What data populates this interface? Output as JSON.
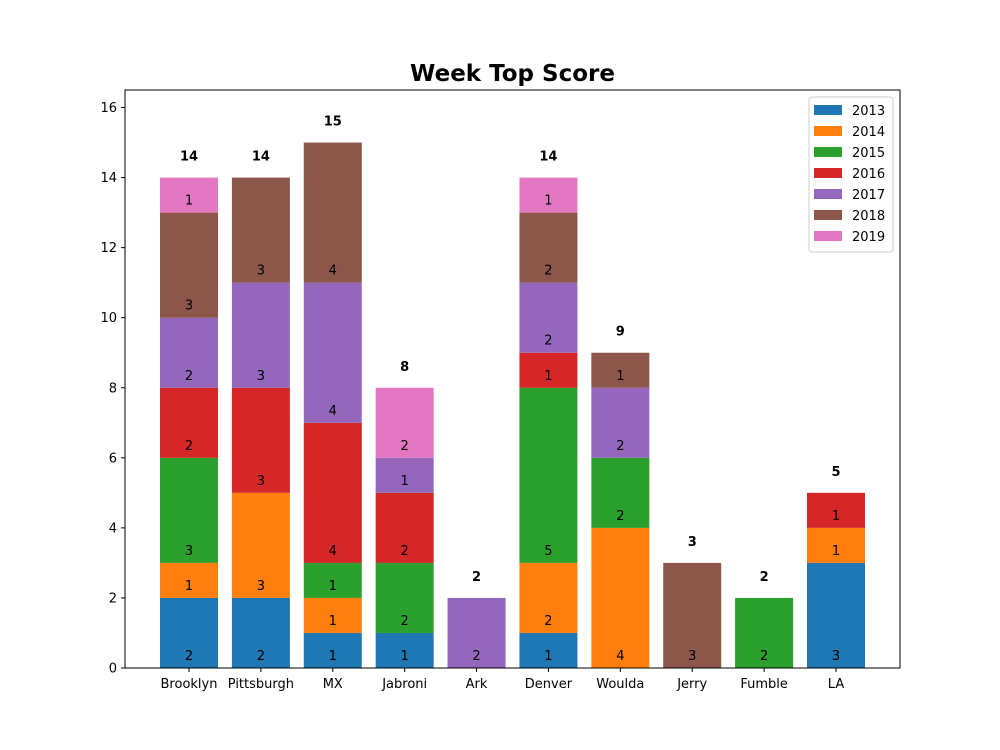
{
  "chart_data": {
    "type": "bar",
    "stacked": true,
    "title": "Week Top Score",
    "xlabel": "",
    "ylabel": "",
    "ylim": [
      0,
      16.5
    ],
    "yticks": [
      0,
      2,
      4,
      6,
      8,
      10,
      12,
      14,
      16
    ],
    "grid": false,
    "legend_position": "top-right",
    "categories": [
      "Brooklyn",
      "Pittsburgh",
      "MX",
      "Jabroni",
      "Ark",
      "Denver",
      "Woulda",
      "Jerry",
      "Fumble",
      "LA"
    ],
    "series": [
      {
        "name": "2013",
        "color": "#1f77b4",
        "values": [
          2,
          2,
          1,
          1,
          0,
          1,
          0,
          0,
          0,
          3
        ]
      },
      {
        "name": "2014",
        "color": "#ff7f0e",
        "values": [
          1,
          3,
          1,
          0,
          0,
          2,
          4,
          0,
          0,
          1
        ]
      },
      {
        "name": "2015",
        "color": "#2ca02c",
        "values": [
          3,
          0,
          1,
          2,
          0,
          5,
          2,
          0,
          2,
          0
        ]
      },
      {
        "name": "2016",
        "color": "#d62728",
        "values": [
          2,
          3,
          4,
          2,
          0,
          1,
          0,
          0,
          0,
          1
        ]
      },
      {
        "name": "2017",
        "color": "#9467bd",
        "values": [
          2,
          3,
          4,
          1,
          2,
          2,
          2,
          0,
          0,
          0
        ]
      },
      {
        "name": "2018",
        "color": "#8c564b",
        "values": [
          3,
          3,
          4,
          0,
          0,
          2,
          1,
          3,
          0,
          0
        ]
      },
      {
        "name": "2019",
        "color": "#e377c2",
        "values": [
          1,
          0,
          0,
          2,
          0,
          1,
          0,
          0,
          0,
          0
        ]
      }
    ],
    "totals": [
      14,
      14,
      15,
      8,
      2,
      14,
      9,
      3,
      2,
      5
    ]
  }
}
